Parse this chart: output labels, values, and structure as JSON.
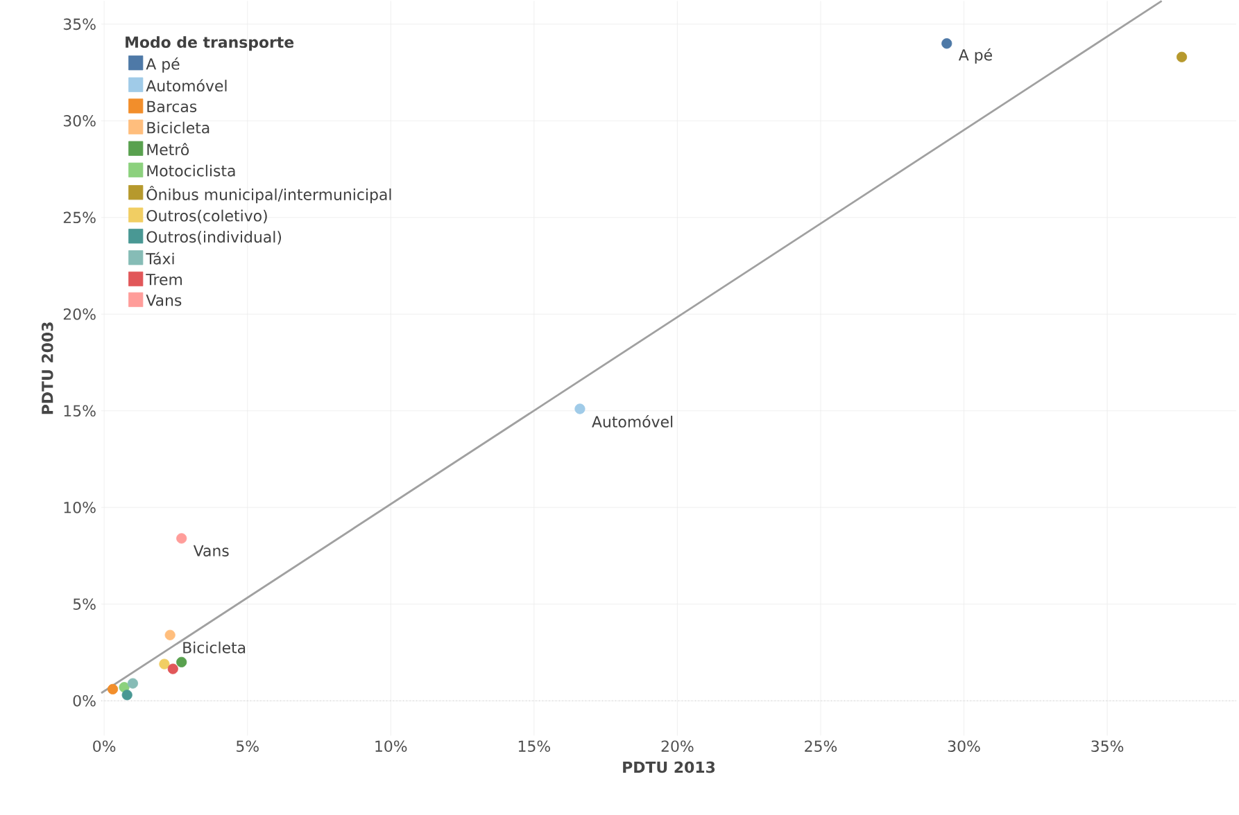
{
  "chart_data": {
    "type": "scatter",
    "xlabel": "PDTU 2013",
    "ylabel": "PDTU 2003",
    "legend_title": "Modo de transporte",
    "xlim": [
      -0.1,
      39.5
    ],
    "ylim": [
      -1.8,
      36.2
    ],
    "xticks": [
      {
        "value": 0,
        "label": "0%"
      },
      {
        "value": 5,
        "label": "5%"
      },
      {
        "value": 10,
        "label": "10%"
      },
      {
        "value": 15,
        "label": "15%"
      },
      {
        "value": 20,
        "label": "20%"
      },
      {
        "value": 25,
        "label": "25%"
      },
      {
        "value": 30,
        "label": "30%"
      },
      {
        "value": 35,
        "label": "35%"
      }
    ],
    "yticks": [
      {
        "value": 0,
        "label": "0%"
      },
      {
        "value": 5,
        "label": "5%"
      },
      {
        "value": 10,
        "label": "10%"
      },
      {
        "value": 15,
        "label": "15%"
      },
      {
        "value": 20,
        "label": "20%"
      },
      {
        "value": 25,
        "label": "25%"
      },
      {
        "value": 30,
        "label": "30%"
      },
      {
        "value": 35,
        "label": "35%"
      }
    ],
    "grid": true,
    "legend": "top left",
    "series": [
      {
        "name": "A pé",
        "color": "#4e79a7",
        "x": [
          29.4
        ],
        "values": [
          34.0
        ]
      },
      {
        "name": "Automóvel",
        "color": "#a0cbe8",
        "x": [
          16.6
        ],
        "values": [
          15.1
        ]
      },
      {
        "name": "Barcas",
        "color": "#f28e2b",
        "x": [
          0.3
        ],
        "values": [
          0.6
        ]
      },
      {
        "name": "Bicicleta",
        "color": "#ffbe7d",
        "x": [
          2.3
        ],
        "values": [
          3.4
        ]
      },
      {
        "name": "Metrô",
        "color": "#59a14f",
        "x": [
          2.7
        ],
        "values": [
          2.0
        ]
      },
      {
        "name": "Motociclista",
        "color": "#8cd17d",
        "x": [
          0.7
        ],
        "values": [
          0.7
        ]
      },
      {
        "name": "Ônibus municipal/intermunicipal",
        "color": "#b6992d",
        "x": [
          37.6
        ],
        "values": [
          33.3
        ]
      },
      {
        "name": "Outros(coletivo)",
        "color": "#f1ce63",
        "x": [
          2.1
        ],
        "values": [
          1.9
        ]
      },
      {
        "name": "Outros(individual)",
        "color": "#499894",
        "x": [
          0.8
        ],
        "values": [
          0.3
        ]
      },
      {
        "name": "Táxi",
        "color": "#86bcb6",
        "x": [
          1.0
        ],
        "values": [
          0.9
        ]
      },
      {
        "name": "Trem",
        "color": "#e15759",
        "x": [
          2.4
        ],
        "values": [
          1.65
        ]
      },
      {
        "name": "Vans",
        "color": "#ff9d9a",
        "x": [
          2.7
        ],
        "values": [
          8.4
        ]
      },
      {
        "type": "line",
        "color": "#a0a0a0",
        "marker": "none",
        "x": [
          -0.1,
          36.9
        ],
        "values": [
          0.4,
          36.2
        ]
      }
    ],
    "ref_lines": [
      {
        "axis": "y",
        "value": 0,
        "color": "#b0b0b0",
        "line_style": "dotted"
      }
    ],
    "annotations": [
      {
        "text": "A pé",
        "x": 29.4,
        "y": 34.0
      },
      {
        "text": "Automóvel",
        "x": 16.6,
        "y": 15.1
      },
      {
        "text": "Vans",
        "x": 2.7,
        "y": 8.4
      },
      {
        "text": "Bicicleta",
        "x": 2.3,
        "y": 3.4
      }
    ]
  }
}
